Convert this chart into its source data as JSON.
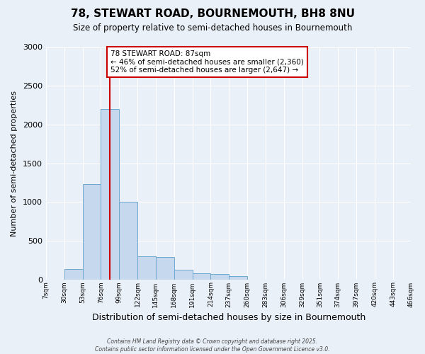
{
  "title": "78, STEWART ROAD, BOURNEMOUTH, BH8 8NU",
  "subtitle": "Size of property relative to semi-detached houses in Bournemouth",
  "xlabel": "Distribution of semi-detached houses by size in Bournemouth",
  "ylabel": "Number of semi-detached properties",
  "property_size": 87,
  "property_label": "78 STEWART ROAD: 87sqm",
  "pct_smaller": 46,
  "pct_larger": 52,
  "n_smaller": 2360,
  "n_larger": 2647,
  "bin_edges": [
    7,
    30,
    53,
    76,
    99,
    122,
    145,
    168,
    191,
    214,
    237,
    260,
    283,
    306,
    329,
    351,
    374,
    397,
    420,
    443,
    466
  ],
  "bar_heights": [
    0,
    130,
    1230,
    2200,
    1000,
    300,
    290,
    120,
    75,
    65,
    45,
    0,
    0,
    0,
    0,
    0,
    0,
    0,
    0,
    0
  ],
  "bar_color": "#c5d8ed",
  "bar_edge_color": "#6fa8d0",
  "red_line_color": "#cc0000",
  "annotation_box_color": "#cc0000",
  "background_color": "#eaf0f8",
  "grid_color": "#ffffff",
  "ylim": [
    0,
    3000
  ],
  "yticks": [
    0,
    500,
    1000,
    1500,
    2000,
    2500,
    3000
  ],
  "footnote": "Contains HM Land Registry data © Crown copyright and database right 2025.\nContains public sector information licensed under the Open Government Licence v3.0."
}
